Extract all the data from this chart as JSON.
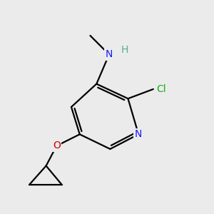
{
  "background_color": "#ebebeb",
  "atom_colors": {
    "C": "#000000",
    "N": "#1a1aff",
    "O": "#cc0000",
    "Cl": "#1aaa1a",
    "H": "#5aaa99"
  },
  "bond_color": "#000000",
  "bond_width": 1.6,
  "fig_size": [
    3.0,
    3.0
  ],
  "dpi": 100
}
